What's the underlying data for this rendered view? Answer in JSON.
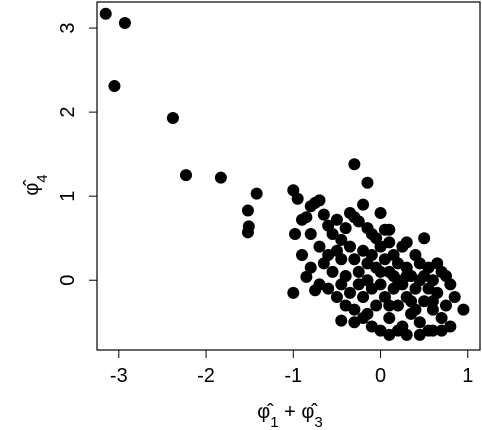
{
  "chart_data": {
    "type": "scatter",
    "x_label_parts": [
      "φ̂",
      "1",
      " + φ̂",
      "3"
    ],
    "y_label_parts": [
      "φ̂",
      "4"
    ],
    "color": "#000000",
    "xlim": [
      -3.25,
      1.14
    ],
    "ylim": [
      -0.83,
      3.31
    ],
    "xticks": [
      -3,
      -2,
      -1,
      0,
      1
    ],
    "yticks": [
      0,
      1,
      2,
      3
    ],
    "x": [
      -3.15,
      -2.93,
      -3.05,
      -2.38,
      -2.23,
      -1.83,
      -1.42,
      -1.52,
      -1.52,
      -1.51,
      -1.0,
      -0.3,
      -0.15,
      -0.95,
      -0.98,
      -1.0,
      -0.75,
      -0.85,
      -0.9,
      -0.85,
      -0.8,
      -0.75,
      -0.7,
      -0.65,
      -0.6,
      -0.55,
      -0.5,
      -0.45,
      -0.4,
      -0.35,
      -0.3,
      -0.25,
      -0.2,
      -0.15,
      -0.1,
      0.0,
      0.05,
      0.1,
      -0.8,
      -0.7,
      -0.65,
      -0.6,
      -0.55,
      -0.5,
      -0.45,
      -0.4,
      -0.35,
      -0.3,
      -0.25,
      -0.2,
      -0.15,
      -0.1,
      -0.05,
      0.0,
      0.05,
      0.1,
      0.15,
      0.2,
      0.25,
      0.3,
      0.35,
      0.4,
      0.45,
      0.5,
      0.55,
      0.6,
      0.65,
      0.7,
      -0.9,
      -0.8,
      -0.7,
      -0.6,
      -0.5,
      -0.45,
      -0.4,
      -0.35,
      -0.3,
      -0.25,
      -0.2,
      -0.15,
      -0.1,
      -0.05,
      0.0,
      0.05,
      0.1,
      0.15,
      0.2,
      0.25,
      0.3,
      0.35,
      0.4,
      0.45,
      0.5,
      0.55,
      0.6,
      0.65,
      0.7,
      0.75,
      0.8,
      0.85,
      0.95,
      0.75,
      0.8,
      -0.3,
      -0.2,
      -0.1,
      0.0,
      0.1,
      0.2,
      0.3,
      0.45,
      0.6,
      0.7,
      -0.45,
      0.15,
      0.25,
      0.35,
      0.2,
      0.3,
      0.4,
      0.5,
      0.55,
      0.1,
      0.0,
      -0.05,
      0.1,
      -0.15,
      0.3,
      0.45,
      0.6
    ],
    "values": [
      3.17,
      3.06,
      2.31,
      1.93,
      1.25,
      1.22,
      1.03,
      0.83,
      0.57,
      0.64,
      1.07,
      1.38,
      1.16,
      0.97,
      0.55,
      -0.15,
      -0.12,
      0.04,
      0.72,
      0.75,
      0.88,
      0.92,
      0.95,
      0.78,
      0.65,
      0.55,
      0.72,
      0.48,
      0.62,
      0.8,
      0.75,
      0.7,
      0.9,
      0.62,
      0.55,
      0.8,
      0.6,
      0.45,
      0.55,
      0.4,
      0.2,
      0.3,
      0.1,
      0.35,
      0.25,
      0.05,
      0.4,
      0.25,
      0.1,
      0.35,
      0.2,
      0.3,
      0.15,
      0.4,
      0.25,
      0.1,
      0.3,
      0.2,
      0.4,
      0.15,
      0.05,
      0.3,
      0.2,
      0.5,
      0.15,
      0.0,
      0.2,
      0.1,
      0.3,
      0.15,
      -0.05,
      -0.1,
      -0.2,
      -0.05,
      -0.3,
      -0.15,
      -0.35,
      -0.05,
      -0.2,
      -0.4,
      -0.1,
      -0.3,
      -0.05,
      -0.2,
      -0.45,
      -0.1,
      -0.3,
      -0.55,
      -0.2,
      -0.4,
      -0.1,
      -0.5,
      -0.25,
      -0.6,
      -0.35,
      -0.15,
      -0.45,
      -0.3,
      -0.55,
      -0.2,
      -0.35,
      0.05,
      -0.05,
      -0.5,
      -0.45,
      -0.55,
      -0.6,
      -0.65,
      -0.6,
      -0.65,
      -0.65,
      -0.6,
      -0.6,
      -0.48,
      0.05,
      -0.05,
      -0.25,
      0.0,
      0.05,
      -0.35,
      0.05,
      -0.1,
      -0.3,
      0.1,
      0.5,
      0.6,
      0.0,
      0.45,
      0.0,
      -0.25
    ]
  }
}
